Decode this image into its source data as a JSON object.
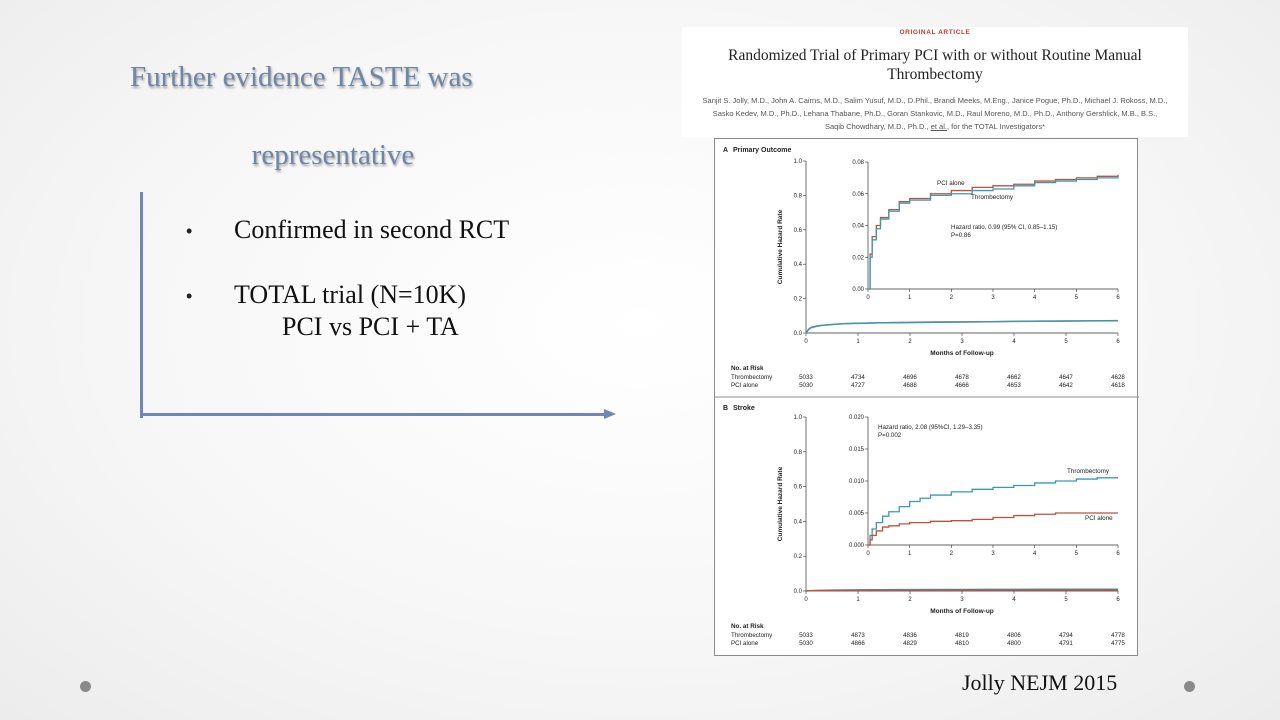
{
  "slide": {
    "title_line1": "Further evidence TASTE was",
    "title_line2": "representative",
    "bullet_char": "•",
    "bullets": [
      "Confirmed in second RCT",
      "TOTAL trial (N=10K)"
    ],
    "subbullet": "PCI vs PCI + TA",
    "citation": "Jolly NEJM 2015"
  },
  "article": {
    "label": "ORIGINAL ARTICLE",
    "title_line1": "Randomized Trial of Primary PCI with or without Routine Manual",
    "title_line2": "Thrombectomy",
    "authors_line1": "Sanjit S. Jolly, M.D., John A. Cairns, M.D., Salim Yusuf, M.D., D.Phil., Brandi Meeks, M.Eng., Janice Pogue, Ph.D., Michael J. Rokoss, M.D.,",
    "authors_line2": "Sasko Kedev, M.D., Ph.D., Lehana Thabane, Ph.D., Goran Stankovic, M.D., Raul Moreno, M.D., Ph.D., Anthony Gershlick, M.B., B.S.,",
    "authors_line3_pre": "Saqib Chowdhary, M.D., Ph.D.,",
    "authors_line3_link": "et al.",
    "authors_line3_post": ", for the TOTAL Investigators*"
  },
  "colors": {
    "pci_alone": "#c0503c",
    "thrombectomy": "#3a9ab4",
    "accent": "#6e86b8",
    "title": "#6f86a4"
  },
  "chart_data": [
    {
      "type": "line",
      "panel": "A",
      "title": "Primary Outcome",
      "xlabel": "Months of Follow-up",
      "ylabel": "Cumulative Hazard Rate",
      "x_ticks": [
        "0",
        "1",
        "2",
        "3",
        "4",
        "5",
        "6"
      ],
      "y_ticks": [
        "0.0",
        "0.2",
        "0.4",
        "0.6",
        "0.8",
        "1.0"
      ],
      "xlim": [
        0,
        6
      ],
      "ylim": [
        0,
        1.0
      ],
      "inset": {
        "xlim": [
          0,
          6
        ],
        "ylim": [
          0,
          0.08
        ],
        "x_ticks": [
          "0",
          "1",
          "2",
          "3",
          "4",
          "5",
          "6"
        ],
        "y_ticks": [
          "0.00",
          "0.02",
          "0.04",
          "0.06",
          "0.08"
        ],
        "annotation_line1": "Hazard ratio, 0.99 (95% CI, 0.85–1.15)",
        "annotation_line2": "P=0.86"
      },
      "series": [
        {
          "name": "PCI alone",
          "color": "#c0503c",
          "x": [
            0,
            0.05,
            0.1,
            0.2,
            0.3,
            0.5,
            0.75,
            1.0,
            1.5,
            2.0,
            2.5,
            3.0,
            3.5,
            4.0,
            4.5,
            5.0,
            5.5,
            6.0
          ],
          "y": [
            0,
            0.022,
            0.033,
            0.04,
            0.045,
            0.05,
            0.055,
            0.057,
            0.06,
            0.062,
            0.064,
            0.065,
            0.066,
            0.068,
            0.069,
            0.07,
            0.071,
            0.072
          ]
        },
        {
          "name": "Thrombectomy",
          "color": "#3a9ab4",
          "x": [
            0,
            0.05,
            0.1,
            0.2,
            0.3,
            0.5,
            0.75,
            1.0,
            1.5,
            2.0,
            2.5,
            3.0,
            3.5,
            4.0,
            4.5,
            5.0,
            5.5,
            6.0
          ],
          "y": [
            0,
            0.02,
            0.031,
            0.038,
            0.044,
            0.049,
            0.054,
            0.056,
            0.059,
            0.06,
            0.062,
            0.063,
            0.065,
            0.067,
            0.068,
            0.069,
            0.07,
            0.071
          ]
        }
      ],
      "risk_table": {
        "heading": "No. at Risk",
        "rows": [
          {
            "label": "Thrombectomy",
            "values": [
              "5033",
              "4734",
              "4696",
              "4678",
              "4662",
              "4647",
              "4628"
            ]
          },
          {
            "label": "PCI alone",
            "values": [
              "5030",
              "4727",
              "4688",
              "4666",
              "4653",
              "4642",
              "4618"
            ]
          }
        ]
      }
    },
    {
      "type": "line",
      "panel": "B",
      "title": "Stroke",
      "xlabel": "Months of Follow-up",
      "ylabel": "Cumulative Hazard Rate",
      "x_ticks": [
        "0",
        "1",
        "2",
        "3",
        "4",
        "5",
        "6"
      ],
      "y_ticks": [
        "0.0",
        "0.2",
        "0.4",
        "0.6",
        "0.8",
        "1.0"
      ],
      "xlim": [
        0,
        6
      ],
      "ylim": [
        0,
        1.0
      ],
      "inset": {
        "xlim": [
          0,
          6
        ],
        "ylim": [
          0,
          0.02
        ],
        "x_ticks": [
          "0",
          "1",
          "2",
          "3",
          "4",
          "5",
          "6"
        ],
        "y_ticks": [
          "0.000",
          "0.005",
          "0.010",
          "0.015",
          "0.020"
        ],
        "annotation_line1": "Hazard ratio, 2.08 (95%CI, 1.29–3.35)",
        "annotation_line2": "P=0.002"
      },
      "series": [
        {
          "name": "Thrombectomy",
          "color": "#3a9ab4",
          "x": [
            0,
            0.05,
            0.1,
            0.2,
            0.35,
            0.5,
            0.75,
            1.0,
            1.25,
            1.5,
            2.0,
            2.5,
            3.0,
            3.5,
            4.0,
            4.5,
            5.0,
            5.5,
            6.0
          ],
          "y": [
            0,
            0.0015,
            0.0025,
            0.0035,
            0.0045,
            0.0052,
            0.006,
            0.0068,
            0.0073,
            0.0078,
            0.0083,
            0.0087,
            0.009,
            0.0093,
            0.0097,
            0.01,
            0.0103,
            0.0105,
            0.0105
          ]
        },
        {
          "name": "PCI alone",
          "color": "#c0503c",
          "x": [
            0,
            0.05,
            0.1,
            0.2,
            0.35,
            0.5,
            0.75,
            1.0,
            1.5,
            2.0,
            2.5,
            3.0,
            3.5,
            4.0,
            4.5,
            5.0,
            5.5,
            6.0
          ],
          "y": [
            0,
            0.0008,
            0.0015,
            0.0022,
            0.0028,
            0.003,
            0.0033,
            0.0035,
            0.0037,
            0.0038,
            0.004,
            0.0043,
            0.0046,
            0.0048,
            0.005,
            0.005,
            0.005,
            0.005
          ]
        }
      ],
      "risk_table": {
        "heading": "No. at Risk",
        "rows": [
          {
            "label": "Thrombectomy",
            "values": [
              "5033",
              "4873",
              "4836",
              "4819",
              "4806",
              "4794",
              "4778"
            ]
          },
          {
            "label": "PCI alone",
            "values": [
              "5030",
              "4866",
              "4829",
              "4810",
              "4800",
              "4791",
              "4775"
            ]
          }
        ]
      }
    }
  ]
}
